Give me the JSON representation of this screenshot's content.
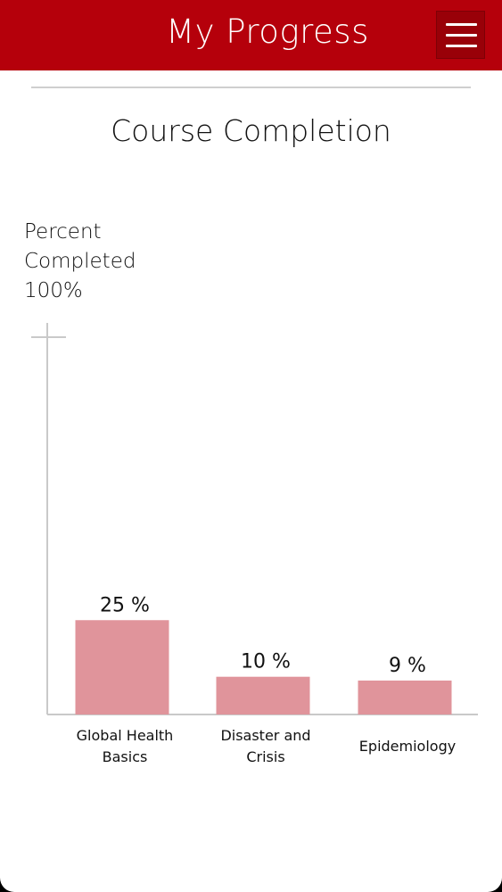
{
  "header": {
    "title": "My Progress",
    "menu_icon": "hamburger-menu-icon"
  },
  "chart_data": {
    "type": "bar",
    "title": "Course Completion",
    "ylabel_lines": [
      "Percent",
      "Completed",
      "100%"
    ],
    "ylim": [
      0,
      100
    ],
    "categories": [
      [
        "Global Health",
        "Basics"
      ],
      [
        "Disaster and",
        "Crisis"
      ],
      [
        "Epidemiology"
      ]
    ],
    "values": [
      25,
      10,
      9
    ],
    "value_labels": [
      "25 %",
      "10 %",
      "9 %"
    ],
    "bar_color": "#e0949b",
    "axis_color": "#c9c9c9"
  },
  "colors": {
    "header_bg": "#b5000b",
    "menu_button_bg": "#990008"
  }
}
